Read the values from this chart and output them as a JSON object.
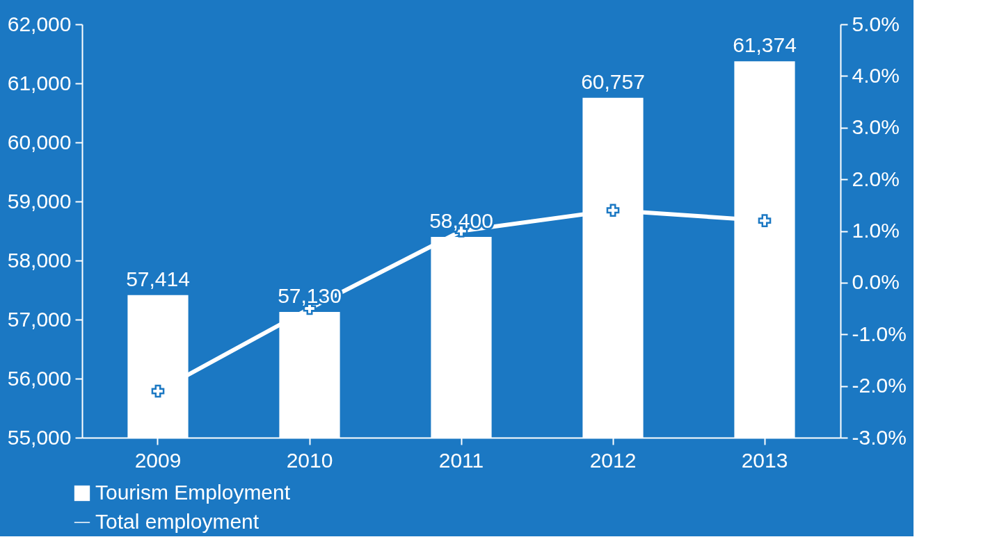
{
  "chart_data": {
    "type": "bar",
    "categories": [
      "2009",
      "2010",
      "2011",
      "2012",
      "2013"
    ],
    "series": [
      {
        "name": "Tourism Employment",
        "color": "#ffffff",
        "values": [
          57414,
          57130,
          58400,
          60757,
          61374
        ],
        "value_labels": [
          "57,414",
          "57,130",
          "58,400",
          "60,757",
          "61,374"
        ]
      },
      {
        "name": "Total employment",
        "type": "line",
        "axis": "y2",
        "color": "#ffffff",
        "values": [
          -2.1,
          -0.5,
          1.0,
          1.4,
          1.2
        ]
      }
    ],
    "ylim": [
      55000,
      62000
    ],
    "yticks": [
      {
        "value": 55000,
        "label": "55,000"
      },
      {
        "value": 56000,
        "label": "56,000"
      },
      {
        "value": 57000,
        "label": "57,000"
      },
      {
        "value": 58000,
        "label": "58,000"
      },
      {
        "value": 59000,
        "label": "59,000"
      },
      {
        "value": 60000,
        "label": "60,000"
      },
      {
        "value": 61000,
        "label": "61,000"
      },
      {
        "value": 62000,
        "label": "62,000"
      }
    ],
    "y2lim": [
      -3.0,
      5.0
    ],
    "y2ticks": [
      {
        "value": -3,
        "label": "-3.0%"
      },
      {
        "value": -2,
        "label": "-2.0%"
      },
      {
        "value": -1,
        "label": "-1.0%"
      },
      {
        "value": 0,
        "label": "0.0%"
      },
      {
        "value": 1,
        "label": "1.0%"
      },
      {
        "value": 2,
        "label": "2.0%"
      },
      {
        "value": 3,
        "label": "3.0%"
      },
      {
        "value": 4,
        "label": "4.0%"
      },
      {
        "value": 5,
        "label": "5.0%"
      }
    ],
    "grid": false,
    "legend": "bottom left",
    "marker": "cross",
    "line_style": "solid"
  }
}
